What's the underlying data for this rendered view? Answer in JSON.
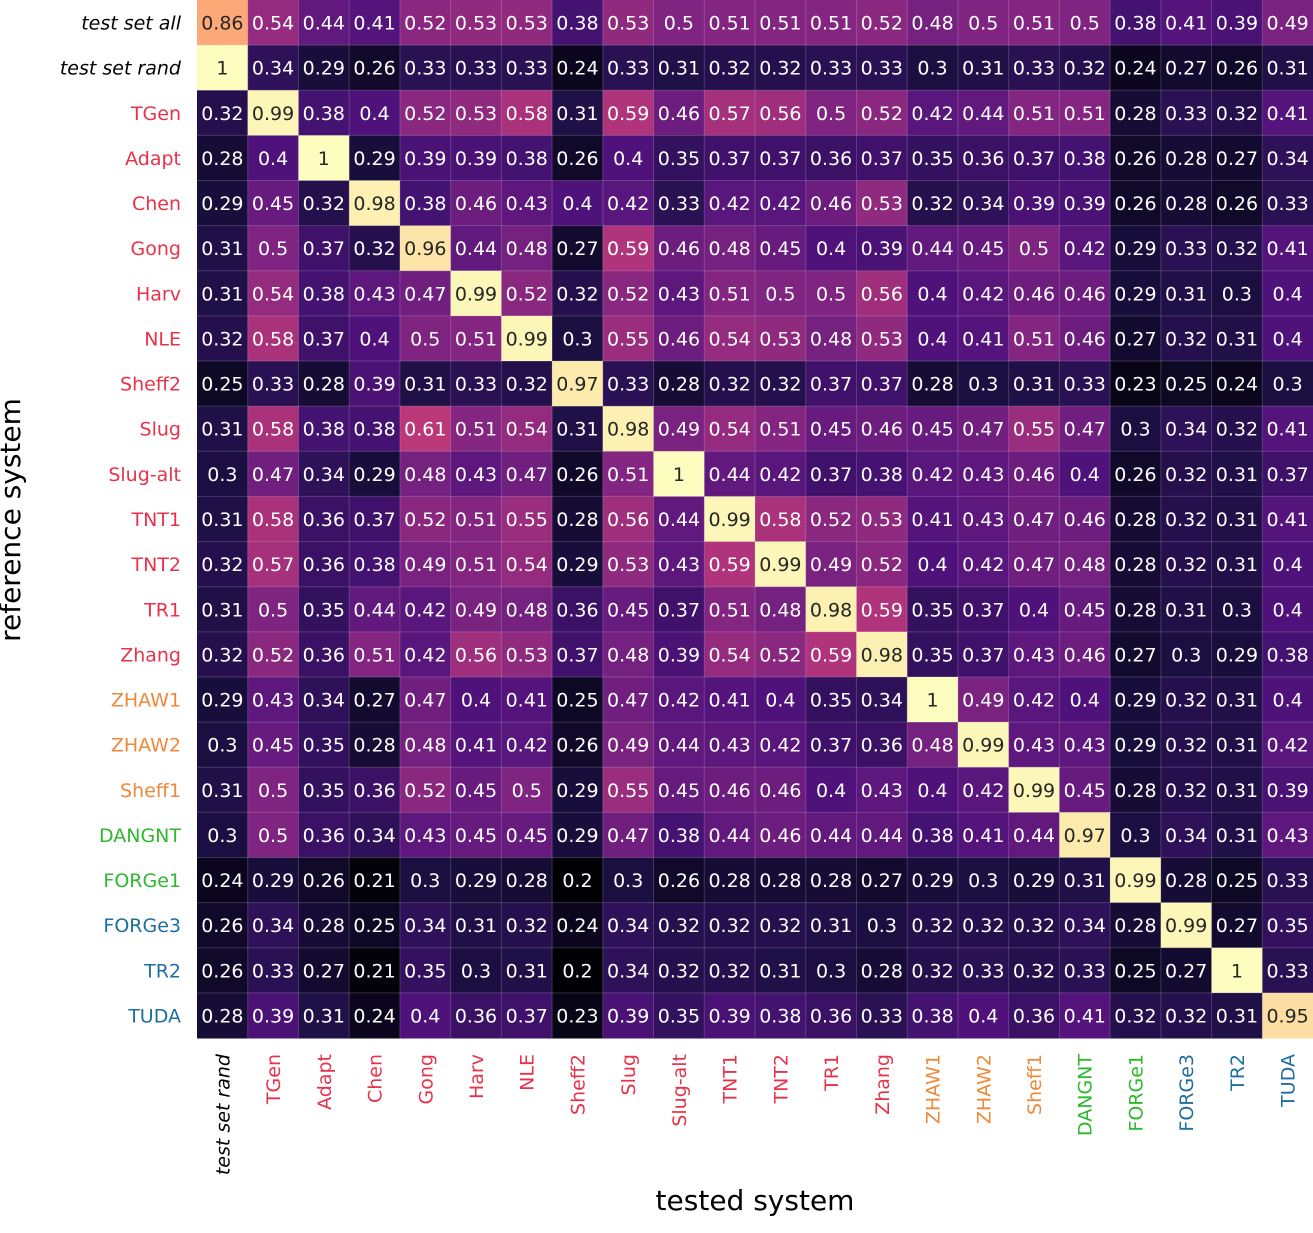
{
  "chart_data": {
    "type": "heatmap",
    "xlabel": "tested system",
    "ylabel": "reference system",
    "colormap": "magma",
    "vmin": 0.2,
    "vmax": 1.0,
    "colorbar": false,
    "rows": [
      {
        "label": "test set all",
        "style": "italic",
        "color": "#000000"
      },
      {
        "label": "test set rand",
        "style": "italic",
        "color": "#000000"
      },
      {
        "label": "TGen",
        "color": "#e8324a"
      },
      {
        "label": "Adapt",
        "color": "#e8324a"
      },
      {
        "label": "Chen",
        "color": "#e8324a"
      },
      {
        "label": "Gong",
        "color": "#e8324a"
      },
      {
        "label": "Harv",
        "color": "#e8324a"
      },
      {
        "label": "NLE",
        "color": "#e8324a"
      },
      {
        "label": "Sheff2",
        "color": "#e8324a"
      },
      {
        "label": "Slug",
        "color": "#e8324a"
      },
      {
        "label": "Slug-alt",
        "color": "#e8324a"
      },
      {
        "label": "TNT1",
        "color": "#e8324a"
      },
      {
        "label": "TNT2",
        "color": "#e8324a"
      },
      {
        "label": "TR1",
        "color": "#e8324a"
      },
      {
        "label": "Zhang",
        "color": "#e8324a"
      },
      {
        "label": "ZHAW1",
        "color": "#f0883a"
      },
      {
        "label": "ZHAW2",
        "color": "#f0883a"
      },
      {
        "label": "Sheff1",
        "color": "#f0883a"
      },
      {
        "label": "DANGNT",
        "color": "#2eb82e"
      },
      {
        "label": "FORGe1",
        "color": "#2eb82e"
      },
      {
        "label": "FORGe3",
        "color": "#1f6e9e"
      },
      {
        "label": "TR2",
        "color": "#1f6e9e"
      },
      {
        "label": "TUDA",
        "color": "#1f6e9e"
      }
    ],
    "columns": [
      {
        "label": "test set rand",
        "style": "italic",
        "color": "#000000"
      },
      {
        "label": "TGen",
        "color": "#e8324a"
      },
      {
        "label": "Adapt",
        "color": "#e8324a"
      },
      {
        "label": "Chen",
        "color": "#e8324a"
      },
      {
        "label": "Gong",
        "color": "#e8324a"
      },
      {
        "label": "Harv",
        "color": "#e8324a"
      },
      {
        "label": "NLE",
        "color": "#e8324a"
      },
      {
        "label": "Sheff2",
        "color": "#e8324a"
      },
      {
        "label": "Slug",
        "color": "#e8324a"
      },
      {
        "label": "Slug-alt",
        "color": "#e8324a"
      },
      {
        "label": "TNT1",
        "color": "#e8324a"
      },
      {
        "label": "TNT2",
        "color": "#e8324a"
      },
      {
        "label": "TR1",
        "color": "#e8324a"
      },
      {
        "label": "Zhang",
        "color": "#e8324a"
      },
      {
        "label": "ZHAW1",
        "color": "#f0883a"
      },
      {
        "label": "ZHAW2",
        "color": "#f0883a"
      },
      {
        "label": "Sheff1",
        "color": "#f0883a"
      },
      {
        "label": "DANGNT",
        "color": "#2eb82e"
      },
      {
        "label": "FORGe1",
        "color": "#2eb82e"
      },
      {
        "label": "FORGe3",
        "color": "#1f6e9e"
      },
      {
        "label": "TR2",
        "color": "#1f6e9e"
      },
      {
        "label": "TUDA",
        "color": "#1f6e9e"
      }
    ],
    "values": [
      [
        "0.86",
        "0.54",
        "0.44",
        "0.41",
        "0.52",
        "0.53",
        "0.53",
        "0.38",
        "0.53",
        "0.5",
        "0.51",
        "0.51",
        "0.51",
        "0.52",
        "0.48",
        "0.5",
        "0.51",
        "0.5",
        "0.38",
        "0.41",
        "0.39",
        "0.49"
      ],
      [
        "1",
        "0.34",
        "0.29",
        "0.26",
        "0.33",
        "0.33",
        "0.33",
        "0.24",
        "0.33",
        "0.31",
        "0.32",
        "0.32",
        "0.33",
        "0.33",
        "0.3",
        "0.31",
        "0.33",
        "0.32",
        "0.24",
        "0.27",
        "0.26",
        "0.31"
      ],
      [
        "0.32",
        "0.99",
        "0.38",
        "0.4",
        "0.52",
        "0.53",
        "0.58",
        "0.31",
        "0.59",
        "0.46",
        "0.57",
        "0.56",
        "0.5",
        "0.52",
        "0.42",
        "0.44",
        "0.51",
        "0.51",
        "0.28",
        "0.33",
        "0.32",
        "0.41"
      ],
      [
        "0.28",
        "0.4",
        "1",
        "0.29",
        "0.39",
        "0.39",
        "0.38",
        "0.26",
        "0.4",
        "0.35",
        "0.37",
        "0.37",
        "0.36",
        "0.37",
        "0.35",
        "0.36",
        "0.37",
        "0.38",
        "0.26",
        "0.28",
        "0.27",
        "0.34"
      ],
      [
        "0.29",
        "0.45",
        "0.32",
        "0.98",
        "0.38",
        "0.46",
        "0.43",
        "0.4",
        "0.42",
        "0.33",
        "0.42",
        "0.42",
        "0.46",
        "0.53",
        "0.32",
        "0.34",
        "0.39",
        "0.39",
        "0.26",
        "0.28",
        "0.26",
        "0.33"
      ],
      [
        "0.31",
        "0.5",
        "0.37",
        "0.32",
        "0.96",
        "0.44",
        "0.48",
        "0.27",
        "0.59",
        "0.46",
        "0.48",
        "0.45",
        "0.4",
        "0.39",
        "0.44",
        "0.45",
        "0.5",
        "0.42",
        "0.29",
        "0.33",
        "0.32",
        "0.41"
      ],
      [
        "0.31",
        "0.54",
        "0.38",
        "0.43",
        "0.47",
        "0.99",
        "0.52",
        "0.32",
        "0.52",
        "0.43",
        "0.51",
        "0.5",
        "0.5",
        "0.56",
        "0.4",
        "0.42",
        "0.46",
        "0.46",
        "0.29",
        "0.31",
        "0.3",
        "0.4"
      ],
      [
        "0.32",
        "0.58",
        "0.37",
        "0.4",
        "0.5",
        "0.51",
        "0.99",
        "0.3",
        "0.55",
        "0.46",
        "0.54",
        "0.53",
        "0.48",
        "0.53",
        "0.4",
        "0.41",
        "0.51",
        "0.46",
        "0.27",
        "0.32",
        "0.31",
        "0.4"
      ],
      [
        "0.25",
        "0.33",
        "0.28",
        "0.39",
        "0.31",
        "0.33",
        "0.32",
        "0.97",
        "0.33",
        "0.28",
        "0.32",
        "0.32",
        "0.37",
        "0.37",
        "0.28",
        "0.3",
        "0.31",
        "0.33",
        "0.23",
        "0.25",
        "0.24",
        "0.3"
      ],
      [
        "0.31",
        "0.58",
        "0.38",
        "0.38",
        "0.61",
        "0.51",
        "0.54",
        "0.31",
        "0.98",
        "0.49",
        "0.54",
        "0.51",
        "0.45",
        "0.46",
        "0.45",
        "0.47",
        "0.55",
        "0.47",
        "0.3",
        "0.34",
        "0.32",
        "0.41"
      ],
      [
        "0.3",
        "0.47",
        "0.34",
        "0.29",
        "0.48",
        "0.43",
        "0.47",
        "0.26",
        "0.51",
        "1",
        "0.44",
        "0.42",
        "0.37",
        "0.38",
        "0.42",
        "0.43",
        "0.46",
        "0.4",
        "0.26",
        "0.32",
        "0.31",
        "0.37"
      ],
      [
        "0.31",
        "0.58",
        "0.36",
        "0.37",
        "0.52",
        "0.51",
        "0.55",
        "0.28",
        "0.56",
        "0.44",
        "0.99",
        "0.58",
        "0.52",
        "0.53",
        "0.41",
        "0.43",
        "0.47",
        "0.46",
        "0.28",
        "0.32",
        "0.31",
        "0.41"
      ],
      [
        "0.32",
        "0.57",
        "0.36",
        "0.38",
        "0.49",
        "0.51",
        "0.54",
        "0.29",
        "0.53",
        "0.43",
        "0.59",
        "0.99",
        "0.49",
        "0.52",
        "0.4",
        "0.42",
        "0.47",
        "0.48",
        "0.28",
        "0.32",
        "0.31",
        "0.4"
      ],
      [
        "0.31",
        "0.5",
        "0.35",
        "0.44",
        "0.42",
        "0.49",
        "0.48",
        "0.36",
        "0.45",
        "0.37",
        "0.51",
        "0.48",
        "0.98",
        "0.59",
        "0.35",
        "0.37",
        "0.4",
        "0.45",
        "0.28",
        "0.31",
        "0.3",
        "0.4"
      ],
      [
        "0.32",
        "0.52",
        "0.36",
        "0.51",
        "0.42",
        "0.56",
        "0.53",
        "0.37",
        "0.48",
        "0.39",
        "0.54",
        "0.52",
        "0.59",
        "0.98",
        "0.35",
        "0.37",
        "0.43",
        "0.46",
        "0.27",
        "0.3",
        "0.29",
        "0.38"
      ],
      [
        "0.29",
        "0.43",
        "0.34",
        "0.27",
        "0.47",
        "0.4",
        "0.41",
        "0.25",
        "0.47",
        "0.42",
        "0.41",
        "0.4",
        "0.35",
        "0.34",
        "1",
        "0.49",
        "0.42",
        "0.4",
        "0.29",
        "0.32",
        "0.31",
        "0.4"
      ],
      [
        "0.3",
        "0.45",
        "0.35",
        "0.28",
        "0.48",
        "0.41",
        "0.42",
        "0.26",
        "0.49",
        "0.44",
        "0.43",
        "0.42",
        "0.37",
        "0.36",
        "0.48",
        "0.99",
        "0.43",
        "0.43",
        "0.29",
        "0.32",
        "0.31",
        "0.42"
      ],
      [
        "0.31",
        "0.5",
        "0.35",
        "0.36",
        "0.52",
        "0.45",
        "0.5",
        "0.29",
        "0.55",
        "0.45",
        "0.46",
        "0.46",
        "0.4",
        "0.43",
        "0.4",
        "0.42",
        "0.99",
        "0.45",
        "0.28",
        "0.32",
        "0.31",
        "0.39"
      ],
      [
        "0.3",
        "0.5",
        "0.36",
        "0.34",
        "0.43",
        "0.45",
        "0.45",
        "0.29",
        "0.47",
        "0.38",
        "0.44",
        "0.46",
        "0.44",
        "0.44",
        "0.38",
        "0.41",
        "0.44",
        "0.97",
        "0.3",
        "0.34",
        "0.31",
        "0.43"
      ],
      [
        "0.24",
        "0.29",
        "0.26",
        "0.21",
        "0.3",
        "0.29",
        "0.28",
        "0.2",
        "0.3",
        "0.26",
        "0.28",
        "0.28",
        "0.28",
        "0.27",
        "0.29",
        "0.3",
        "0.29",
        "0.31",
        "0.99",
        "0.28",
        "0.25",
        "0.33"
      ],
      [
        "0.26",
        "0.34",
        "0.28",
        "0.25",
        "0.34",
        "0.31",
        "0.32",
        "0.24",
        "0.34",
        "0.32",
        "0.32",
        "0.32",
        "0.31",
        "0.3",
        "0.32",
        "0.32",
        "0.32",
        "0.34",
        "0.28",
        "0.99",
        "0.27",
        "0.35"
      ],
      [
        "0.26",
        "0.33",
        "0.27",
        "0.21",
        "0.35",
        "0.3",
        "0.31",
        "0.2",
        "0.34",
        "0.32",
        "0.32",
        "0.31",
        "0.3",
        "0.28",
        "0.32",
        "0.33",
        "0.32",
        "0.33",
        "0.25",
        "0.27",
        "1",
        "0.33"
      ],
      [
        "0.28",
        "0.39",
        "0.31",
        "0.24",
        "0.4",
        "0.36",
        "0.37",
        "0.23",
        "0.39",
        "0.35",
        "0.39",
        "0.38",
        "0.36",
        "0.33",
        "0.38",
        "0.4",
        "0.36",
        "0.41",
        "0.32",
        "0.32",
        "0.31",
        "0.95"
      ]
    ]
  }
}
